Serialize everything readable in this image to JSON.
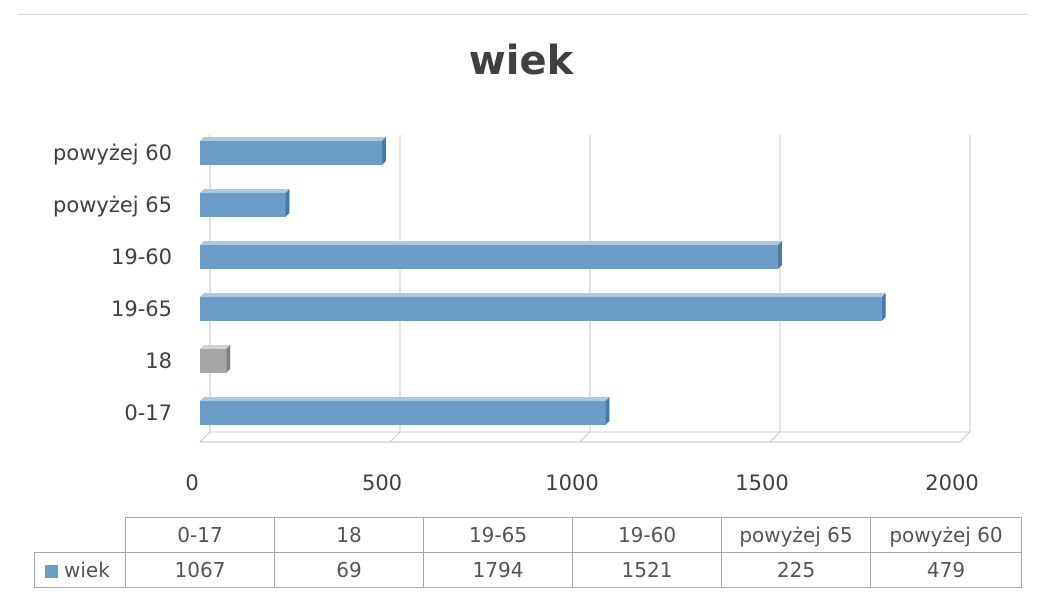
{
  "chart_data": {
    "type": "bar",
    "orientation": "horizontal",
    "title": "wiek",
    "categories": [
      "0-17",
      "18",
      "19-65",
      "19-60",
      "powyżej 65",
      "powyżej 60"
    ],
    "series": [
      {
        "name": "wiek",
        "values": [
          1067,
          69,
          1794,
          1521,
          225,
          479
        ]
      }
    ],
    "xlim": [
      0,
      2000
    ],
    "x_ticks": [
      0,
      500,
      1000,
      1500,
      2000
    ],
    "grid": true,
    "colors": {
      "bar": "#6a9cc6",
      "bar_top": "#a9c8e2",
      "bar_side": "#4a7aa3",
      "bar_highlight": "#a6a6a6",
      "bar_highlight_top": "#d0d0d0",
      "bar_highlight_side": "#7f7f7f"
    },
    "highlighted_category": "18",
    "legend_position": "data-table"
  }
}
